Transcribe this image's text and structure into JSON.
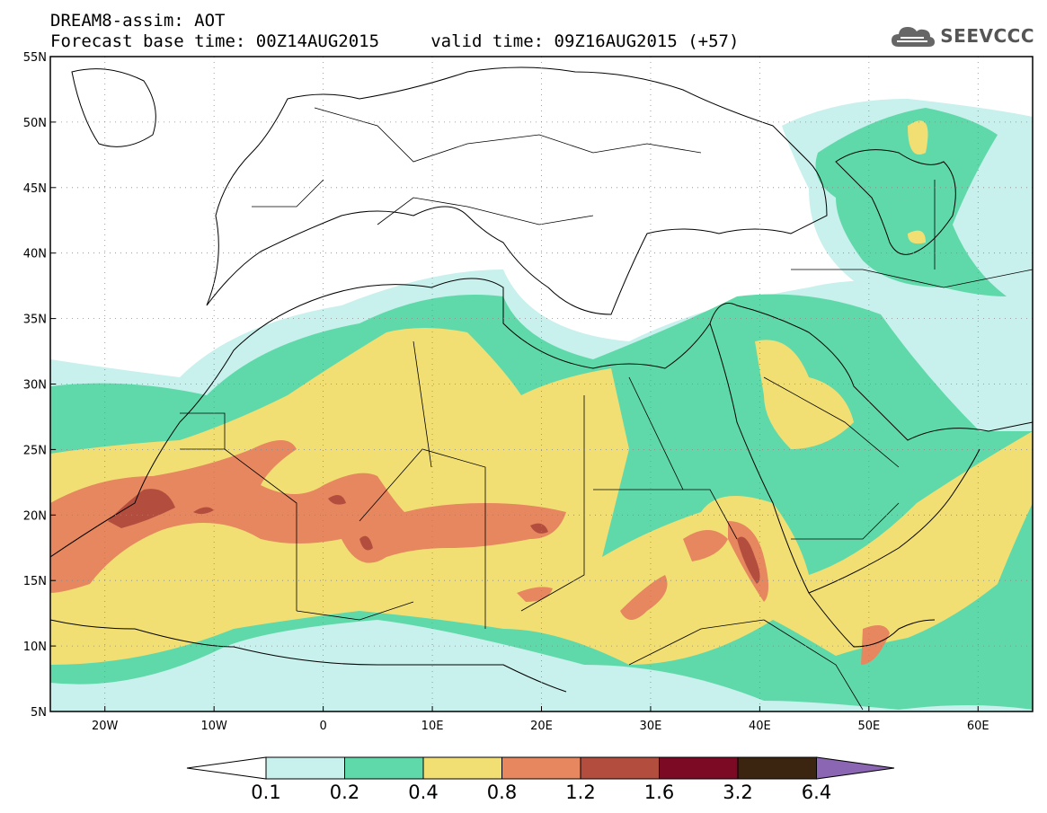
{
  "header": {
    "line1": "DREAM8-assim: AOT",
    "line2": "Forecast base time: 00Z14AUG2015     valid time: 09Z16AUG2015 (+57)"
  },
  "logo": {
    "text": "SEEVCCC",
    "icon": "cloud-logo-icon"
  },
  "map": {
    "lat_labels": [
      "55N",
      "50N",
      "45N",
      "40N",
      "35N",
      "30N",
      "25N",
      "20N",
      "15N",
      "10N",
      "5N"
    ],
    "lon_labels": [
      "20W",
      "10W",
      "0",
      "10E",
      "20E",
      "30E",
      "40E",
      "50E",
      "60E"
    ],
    "lat_range": [
      5,
      55
    ],
    "lon_range": [
      -25,
      65
    ],
    "grid": true
  },
  "colorbar": {
    "labels": [
      "0.1",
      "0.2",
      "0.4",
      "0.8",
      "1.2",
      "1.6",
      "3.2",
      "6.4"
    ],
    "colors": [
      "#c8f0ec",
      "#5fd9a9",
      "#f2df74",
      "#e6875f",
      "#b34e3f",
      "#7d0a25",
      "#3b2410",
      "#8a66b3"
    ],
    "under_color": "#ffffff"
  }
}
